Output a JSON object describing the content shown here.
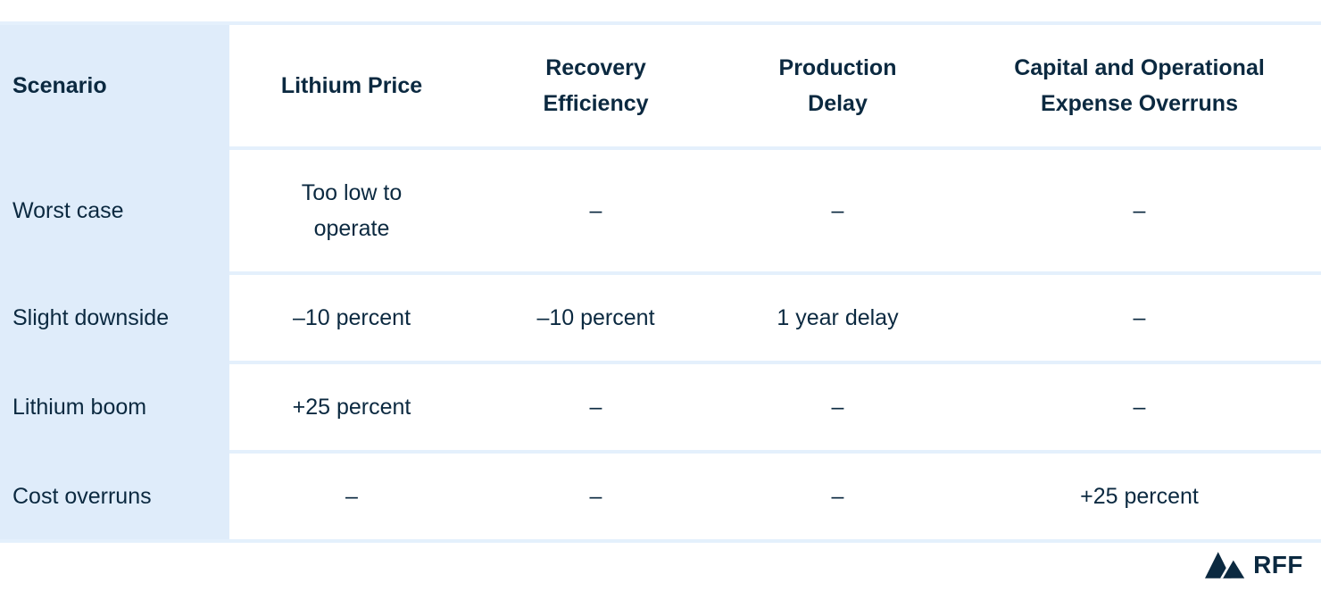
{
  "colors": {
    "text": "#0b2940",
    "first_column_bg": "#dfecfa",
    "divider": "#e4f0fc",
    "page_bg": "#ffffff"
  },
  "table": {
    "header": {
      "scenario": "Scenario",
      "columns": [
        "Lithium Price",
        "Recovery\nEfficiency",
        "Production\nDelay",
        "Capital and Operational\nExpense Overruns"
      ]
    },
    "rows": [
      {
        "scenario": "Worst case",
        "values": [
          "Too low to\noperate",
          "–",
          "–",
          "–"
        ]
      },
      {
        "scenario": "Slight downside",
        "values": [
          "–10 percent",
          "–10 percent",
          "1 year delay",
          "–"
        ]
      },
      {
        "scenario": "Lithium boom",
        "values": [
          "+25 percent",
          "–",
          "–",
          "–"
        ]
      },
      {
        "scenario": "Cost overruns",
        "values": [
          "–",
          "–",
          "–",
          "+25 percent"
        ]
      }
    ]
  },
  "chart_data": {
    "type": "table",
    "title": "",
    "columns": [
      "Scenario",
      "Lithium Price",
      "Recovery Efficiency",
      "Production Delay",
      "Capital and Operational Expense Overruns"
    ],
    "rows": [
      [
        "Worst case",
        "Too low to operate",
        "–",
        "–",
        "–"
      ],
      [
        "Slight downside",
        "–10 percent",
        "–10 percent",
        "1 year delay",
        "–"
      ],
      [
        "Lithium boom",
        "+25 percent",
        "–",
        "–",
        "–"
      ],
      [
        "Cost overruns",
        "–",
        "–",
        "–",
        "+25 percent"
      ]
    ]
  },
  "branding": {
    "org_abbreviation": "RFF",
    "logo_icon": "mountains-icon"
  }
}
